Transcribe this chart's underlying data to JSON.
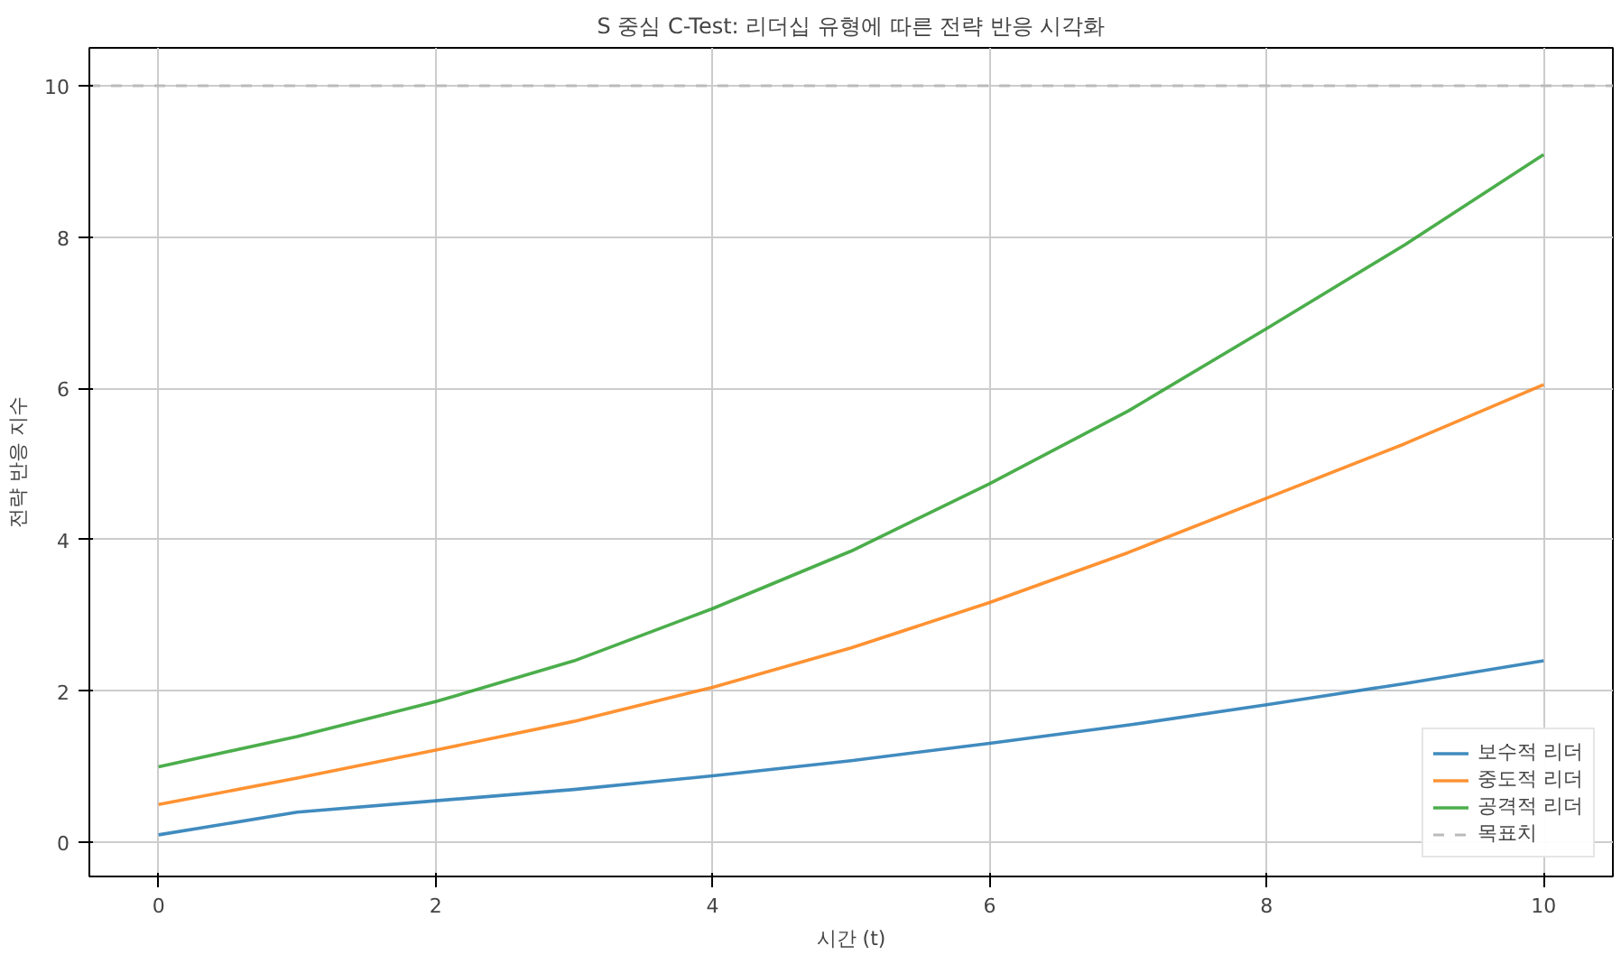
{
  "chart_data": {
    "type": "line",
    "title": "S 중심 C-Test: 리더십 유형에 따른 전략 반응 시각화",
    "xlabel": "시간 (t)",
    "ylabel": "전략 반응 지수",
    "x": [
      0,
      1,
      2,
      3,
      4,
      5,
      6,
      7,
      8,
      9,
      10
    ],
    "series": [
      {
        "name": "보수적 리더",
        "color": "#1f77b4",
        "values": [
          0.1,
          0.4,
          0.55,
          0.7,
          0.88,
          1.08,
          1.31,
          1.55,
          1.82,
          2.1,
          2.4
        ]
      },
      {
        "name": "중도적 리더",
        "color": "#ff7f0e",
        "values": [
          0.5,
          0.85,
          1.22,
          1.6,
          2.05,
          2.57,
          3.17,
          3.83,
          4.55,
          5.27,
          6.05
        ]
      },
      {
        "name": "공격적 리더",
        "color": "#2ca02c",
        "values": [
          1.0,
          1.4,
          1.86,
          2.4,
          3.09,
          3.85,
          4.74,
          5.7,
          6.79,
          7.9,
          9.09
        ]
      }
    ],
    "ref_lines": [
      {
        "axis": "y",
        "value": 10,
        "label": "목표치",
        "color": "#bbbbbb",
        "line_style": "dashed"
      }
    ],
    "xlim": [
      -0.5,
      10.5
    ],
    "ylim": [
      -0.45,
      10.5
    ],
    "xticks": [
      0,
      2,
      4,
      6,
      8,
      10
    ],
    "yticks": [
      0,
      2,
      4,
      6,
      8,
      10
    ],
    "grid": true,
    "legend": "bottom right",
    "line_style": "solid",
    "marker": "none"
  }
}
